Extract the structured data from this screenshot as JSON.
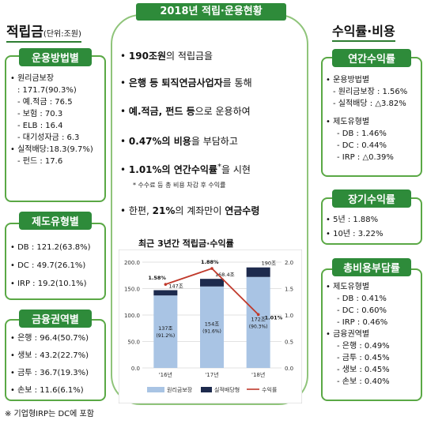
{
  "left": {
    "title": "적립금",
    "unit": "(단위:조원)",
    "method": {
      "head": "운용방법별",
      "lines": [
        {
          "cls": "bul",
          "text": "원리금보장"
        },
        {
          "cls": "sub",
          "text": ": 171.7(90.3%)"
        },
        {
          "cls": "sub",
          "text": "- 예.적금 : 76.5"
        },
        {
          "cls": "sub",
          "text": "- 보험    : 70.3"
        },
        {
          "cls": "sub",
          "text": "- ELB     : 16.4"
        },
        {
          "cls": "sub",
          "text": "- 대기성자금 : 6.3"
        },
        {
          "cls": "bul",
          "text": "실적배당:18.3(9.7%)"
        },
        {
          "cls": "sub",
          "text": "- 펀드 : 17.6"
        }
      ]
    },
    "system": {
      "head": "제도유형별",
      "lines": [
        {
          "cls": "bul",
          "text": "DB : 121.2(63.8%)"
        },
        {
          "cls": "bul",
          "text": "DC :  49.7(26.1%)"
        },
        {
          "cls": "bul",
          "text": "IRP :  19.2(10.1%)"
        }
      ]
    },
    "finance": {
      "head": "금융권역별",
      "lines": [
        {
          "cls": "bul",
          "text": "은행 : 96.4(50.7%)"
        },
        {
          "cls": "bul",
          "text": "생보 : 43.2(22.7%)"
        },
        {
          "cls": "bul",
          "text": "금투 : 36.7(19.3%)"
        },
        {
          "cls": "bul",
          "text": "손보 : 11.6(6.1%)"
        }
      ]
    }
  },
  "center": {
    "head": "2018년 적립·운용현황",
    "s1_b": "190조원",
    "s1_t": "의 적립금을",
    "s2_b": "은행 등 퇴직연금사업자",
    "s2_t": "를 통해",
    "s3_b": "예.적금, 펀드 등",
    "s3_t": "으로 운용하여",
    "s4_b": "0.47%의 비용",
    "s4_t": "을 부담하고",
    "s5_b": "1.01%의 연간수익률",
    "s5_star": "*",
    "s5_t": "을 시현",
    "note": "* 수수료 등 총 비용 차감 후 수익률",
    "s6_a": "한편, ",
    "s6_b": "21%",
    "s6_t": "의 계좌만이 ",
    "s6_c": "연금수령",
    "chart_title": "최근 3년간 적립금·수익률"
  },
  "right": {
    "title": "수익률·비용",
    "annual": {
      "head": "연간수익률",
      "lines": [
        {
          "cls": "bul",
          "text": "운용방법별"
        },
        {
          "cls": "sub",
          "text": "- 원리금보장 : 1.56%"
        },
        {
          "cls": "sub",
          "text": "- 실적배당 : △3.82%"
        },
        {
          "cls": "gap",
          "text": ""
        },
        {
          "cls": "bul",
          "text": "제도유형별"
        },
        {
          "cls": "sub2",
          "text": "- DB : 1.46%"
        },
        {
          "cls": "sub2",
          "text": "- DC : 0.44%"
        },
        {
          "cls": "sub2",
          "text": "- IRP : △0.39%"
        }
      ]
    },
    "long": {
      "head": "장기수익률",
      "lines": [
        {
          "cls": "bul",
          "text": "5년 :  1.88%"
        },
        {
          "cls": "bul",
          "text": "10년 :  3.22%"
        }
      ]
    },
    "cost": {
      "head": "총비용부담률",
      "lines": [
        {
          "cls": "bul",
          "text": "제도유형별"
        },
        {
          "cls": "sub2",
          "text": "- DB : 0.41%"
        },
        {
          "cls": "sub2",
          "text": "- DC : 0.60%"
        },
        {
          "cls": "sub2",
          "text": "- IRP : 0.46%"
        },
        {
          "cls": "bul",
          "text": "금융권역별"
        },
        {
          "cls": "sub2",
          "text": "- 은행 : 0.49%"
        },
        {
          "cls": "sub2",
          "text": "- 금투 : 0.45%"
        },
        {
          "cls": "sub2",
          "text": "- 생보 : 0.45%"
        },
        {
          "cls": "sub2",
          "text": "- 손보 : 0.40%"
        }
      ]
    }
  },
  "footnote": "※ 기업형IRP는 DC에 포함",
  "chart_data": {
    "type": "bar",
    "categories": [
      "'16년",
      "'17년",
      "'18년"
    ],
    "series": [
      {
        "name": "원리금보장",
        "values": [
          137,
          154,
          172
        ],
        "labels": [
          "137조",
          "154조",
          "172조"
        ],
        "pct_labels": [
          "(91.2%)",
          "(91.6%)",
          "(90.3%)"
        ],
        "color": "#a9c4e4"
      },
      {
        "name": "실적배당형",
        "values": [
          10,
          14.4,
          18
        ],
        "color": "#1d2a4d"
      },
      {
        "name": "수익률",
        "values": [
          1.58,
          1.88,
          1.01
        ],
        "labels": [
          "1.58%",
          "1.88%",
          "1.01%"
        ],
        "color": "#c0392b",
        "axis": "right"
      }
    ],
    "totals": [
      147,
      168.4,
      190
    ],
    "total_labels": [
      "147조",
      "168.4조",
      "190조"
    ],
    "y_left": {
      "range": [
        0,
        200
      ],
      "ticks": [
        "0.0",
        "50.0",
        "100.0",
        "150.0",
        "200.0"
      ]
    },
    "y_right": {
      "range": [
        0,
        2.0
      ],
      "ticks": [
        "0.0",
        "0.5",
        "1.0",
        "1.5",
        "2.0"
      ]
    }
  }
}
